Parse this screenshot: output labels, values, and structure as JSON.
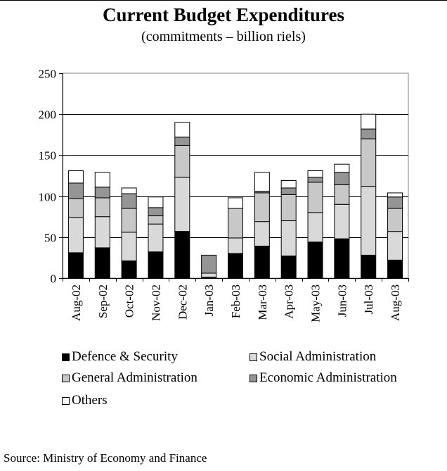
{
  "title": "Current Budget Expenditures",
  "subtitle": "(commitments – billion riels)",
  "source": "Source: Ministry of Economy and Finance",
  "chart_data": {
    "type": "bar",
    "stacked": true,
    "title": "Current Budget Expenditures",
    "subtitle": "(commitments – billion riels)",
    "categories": [
      "Aug-02",
      "Sep-02",
      "Oct-02",
      "Nov-02",
      "Dec-02",
      "Jan-03",
      "Feb-03",
      "Mar-03",
      "Apr-03",
      "May-03",
      "Jun-03",
      "Jul-03",
      "Aug-03"
    ],
    "ylim": [
      0,
      250
    ],
    "yticks": [
      "0",
      "50",
      "100",
      "150",
      "200",
      "250"
    ],
    "grid": true,
    "legend_position": "bottom",
    "series": [
      {
        "name": "Defence & Security",
        "color": "#000000",
        "values": [
          31,
          37,
          21,
          32,
          57,
          1,
          30,
          39,
          27,
          44,
          48,
          28,
          22
        ]
      },
      {
        "name": "Social Administration",
        "color": "#d9d9d9",
        "values": [
          43,
          38,
          35,
          34,
          66,
          5,
          19,
          30,
          43,
          36,
          42,
          84,
          35
        ]
      },
      {
        "name": "General Administration",
        "color": "#c8c8c8",
        "values": [
          23,
          23,
          29,
          10,
          39,
          0,
          36,
          35,
          32,
          37,
          24,
          58,
          28
        ]
      },
      {
        "name": "Economic Administration",
        "color": "#959595",
        "values": [
          19,
          13,
          18,
          10,
          10,
          22,
          0,
          2,
          8,
          6,
          15,
          12,
          14
        ]
      },
      {
        "name": "Others",
        "color": "#ffffff",
        "values": [
          15,
          18,
          7,
          13,
          18,
          0,
          13,
          23,
          9,
          8,
          10,
          18,
          5
        ]
      }
    ]
  }
}
